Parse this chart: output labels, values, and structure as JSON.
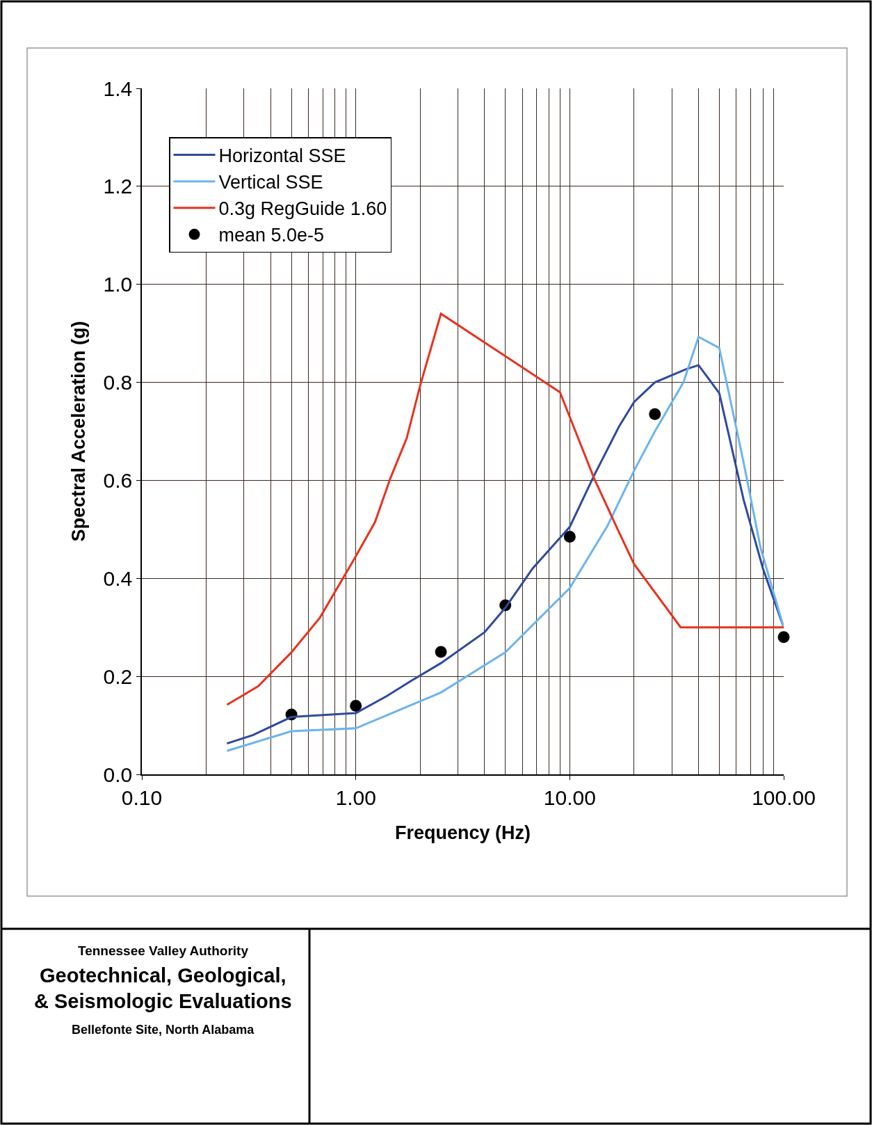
{
  "chart_data": {
    "type": "line",
    "xlabel": "Frequency (Hz)",
    "ylabel": "Spectral Acceleration (g)",
    "log": "x",
    "xlim": [
      0.1,
      100
    ],
    "xticks": [
      {
        "value": 0.1,
        "label": "0.10"
      },
      {
        "value": 1,
        "label": "1.00"
      },
      {
        "value": 10,
        "label": "10.00"
      },
      {
        "value": 100,
        "label": "100.00"
      }
    ],
    "ylim": [
      0,
      1.4
    ],
    "yticks": [
      {
        "value": 0,
        "label": "0.0"
      },
      {
        "value": 0.2,
        "label": "0.2"
      },
      {
        "value": 0.4,
        "label": "0.4"
      },
      {
        "value": 0.6,
        "label": "0.6"
      },
      {
        "value": 0.8,
        "label": "0.8"
      },
      {
        "value": 1.0,
        "label": "1.0"
      },
      {
        "value": 1.2,
        "label": "1.2"
      },
      {
        "value": 1.4,
        "label": "1.4"
      }
    ],
    "grid": true,
    "legend": "top left",
    "line_style": "solid",
    "marker": "none",
    "series": [
      {
        "name": "Horizontal SSE",
        "color": "#2e4a9e",
        "x": [
          0.25,
          0.33,
          0.5,
          1.0,
          1.4,
          1.8,
          2.5,
          4,
          5,
          6.7,
          10,
          13,
          17,
          20,
          25,
          35,
          40,
          50,
          65,
          80,
          100
        ],
        "values": [
          0.063,
          0.08,
          0.117,
          0.125,
          0.16,
          0.19,
          0.227,
          0.29,
          0.34,
          0.42,
          0.505,
          0.61,
          0.71,
          0.76,
          0.8,
          0.827,
          0.835,
          0.778,
          0.56,
          0.42,
          0.3
        ]
      },
      {
        "name": "Vertical SSE",
        "color": "#6cb4ee",
        "x": [
          0.25,
          0.5,
          1.0,
          2.5,
          5,
          10,
          15,
          20,
          25,
          34,
          40,
          50,
          65,
          78,
          100
        ],
        "values": [
          0.048,
          0.088,
          0.094,
          0.167,
          0.249,
          0.38,
          0.507,
          0.62,
          0.7,
          0.8,
          0.893,
          0.87,
          0.636,
          0.462,
          0.3
        ]
      },
      {
        "name": "0.3g RegGuide 1.60",
        "color": "#e8321e",
        "x": [
          0.25,
          0.35,
          0.5,
          0.68,
          1.0,
          1.23,
          1.45,
          1.73,
          2.0,
          2.5,
          9,
          13,
          17,
          20,
          33,
          100
        ],
        "values": [
          0.142,
          0.18,
          0.249,
          0.32,
          0.445,
          0.515,
          0.604,
          0.686,
          0.794,
          0.94,
          0.78,
          0.604,
          0.494,
          0.429,
          0.3,
          0.3
        ]
      },
      {
        "name": "mean 5.0e-5",
        "type": "scatter",
        "marker": "circle",
        "color": "#000000",
        "x": [
          0.5,
          1.0,
          2.5,
          5,
          10,
          25,
          100
        ],
        "values": [
          0.122,
          0.14,
          0.25,
          0.345,
          0.485,
          0.735,
          0.28
        ]
      }
    ],
    "annotations": [
      "Tennessee Valley Authority",
      "Geotechnical, Geological,",
      "& Seismologic Evaluations",
      "Bellefonte Site, North Alabama"
    ]
  }
}
